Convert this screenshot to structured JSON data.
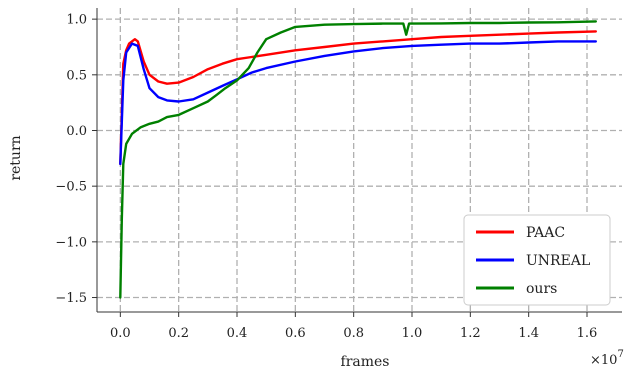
{
  "chart_data": {
    "type": "line",
    "title": "",
    "xlabel": "frames",
    "ylabel": "return",
    "x_exponent_label": "×10",
    "x_exponent_power": "7",
    "xlim": [
      -0.08,
      1.72
    ],
    "ylim": [
      -1.63,
      1.1
    ],
    "x_ticks": [
      0.0,
      0.2,
      0.4,
      0.6,
      0.8,
      1.0,
      1.2,
      1.4,
      1.6
    ],
    "x_tick_labels": [
      "0.0",
      "0.2",
      "0.4",
      "0.6",
      "0.8",
      "1.0",
      "1.2",
      "1.4",
      "1.6"
    ],
    "y_ticks": [
      1.0,
      0.5,
      0.0,
      -0.5,
      -1.0,
      -1.5
    ],
    "y_tick_labels": [
      "1.0",
      "0.5",
      "0.0",
      "−0.5",
      "−1.0",
      "−1.5"
    ],
    "grid": true,
    "legend_position": "bottom-right",
    "series": [
      {
        "name": "PAAC",
        "color": "#ff0000",
        "points": [
          [
            0.0,
            -0.3
          ],
          [
            0.01,
            0.6
          ],
          [
            0.02,
            0.72
          ],
          [
            0.03,
            0.78
          ],
          [
            0.05,
            0.82
          ],
          [
            0.06,
            0.8
          ],
          [
            0.08,
            0.62
          ],
          [
            0.1,
            0.5
          ],
          [
            0.13,
            0.44
          ],
          [
            0.16,
            0.42
          ],
          [
            0.2,
            0.43
          ],
          [
            0.25,
            0.48
          ],
          [
            0.3,
            0.55
          ],
          [
            0.35,
            0.6
          ],
          [
            0.4,
            0.64
          ],
          [
            0.45,
            0.66
          ],
          [
            0.5,
            0.68
          ],
          [
            0.6,
            0.72
          ],
          [
            0.7,
            0.75
          ],
          [
            0.8,
            0.78
          ],
          [
            0.9,
            0.8
          ],
          [
            1.0,
            0.82
          ],
          [
            1.1,
            0.84
          ],
          [
            1.2,
            0.85
          ],
          [
            1.3,
            0.86
          ],
          [
            1.4,
            0.87
          ],
          [
            1.5,
            0.88
          ],
          [
            1.63,
            0.89
          ]
        ]
      },
      {
        "name": "UNREAL",
        "color": "#0000ff",
        "points": [
          [
            0.0,
            -0.3
          ],
          [
            0.01,
            0.45
          ],
          [
            0.02,
            0.7
          ],
          [
            0.04,
            0.78
          ],
          [
            0.06,
            0.76
          ],
          [
            0.08,
            0.55
          ],
          [
            0.1,
            0.38
          ],
          [
            0.13,
            0.3
          ],
          [
            0.16,
            0.27
          ],
          [
            0.2,
            0.26
          ],
          [
            0.25,
            0.28
          ],
          [
            0.3,
            0.34
          ],
          [
            0.35,
            0.4
          ],
          [
            0.4,
            0.46
          ],
          [
            0.45,
            0.52
          ],
          [
            0.5,
            0.56
          ],
          [
            0.6,
            0.62
          ],
          [
            0.7,
            0.67
          ],
          [
            0.8,
            0.71
          ],
          [
            0.9,
            0.74
          ],
          [
            1.0,
            0.76
          ],
          [
            1.1,
            0.77
          ],
          [
            1.2,
            0.78
          ],
          [
            1.3,
            0.78
          ],
          [
            1.4,
            0.79
          ],
          [
            1.5,
            0.8
          ],
          [
            1.63,
            0.8
          ]
        ]
      },
      {
        "name": "ours",
        "color": "#008000",
        "points": [
          [
            0.0,
            -1.5
          ],
          [
            0.005,
            -0.8
          ],
          [
            0.01,
            -0.3
          ],
          [
            0.02,
            -0.12
          ],
          [
            0.04,
            -0.03
          ],
          [
            0.07,
            0.03
          ],
          [
            0.1,
            0.06
          ],
          [
            0.13,
            0.08
          ],
          [
            0.16,
            0.12
          ],
          [
            0.2,
            0.14
          ],
          [
            0.25,
            0.2
          ],
          [
            0.3,
            0.26
          ],
          [
            0.33,
            0.32
          ],
          [
            0.36,
            0.38
          ],
          [
            0.4,
            0.45
          ],
          [
            0.44,
            0.56
          ],
          [
            0.47,
            0.7
          ],
          [
            0.5,
            0.82
          ],
          [
            0.55,
            0.88
          ],
          [
            0.6,
            0.93
          ],
          [
            0.7,
            0.95
          ],
          [
            0.8,
            0.955
          ],
          [
            0.9,
            0.96
          ],
          [
            0.97,
            0.96
          ],
          [
            0.98,
            0.86
          ],
          [
            0.99,
            0.96
          ],
          [
            1.1,
            0.962
          ],
          [
            1.2,
            0.965
          ],
          [
            1.3,
            0.965
          ],
          [
            1.4,
            0.97
          ],
          [
            1.5,
            0.972
          ],
          [
            1.63,
            0.98
          ]
        ]
      }
    ]
  }
}
